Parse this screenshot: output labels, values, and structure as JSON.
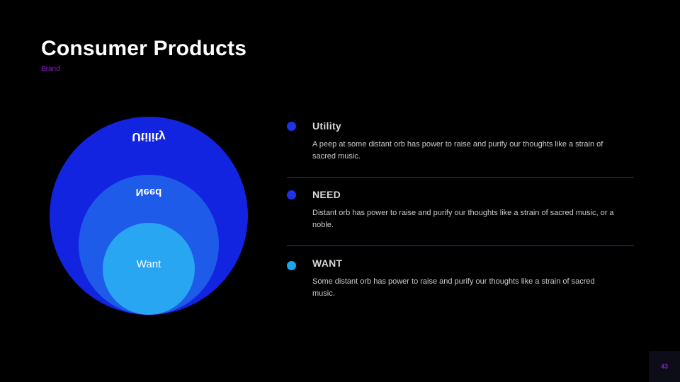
{
  "header": {
    "title": "Consumer Products",
    "subtitle": "Brand",
    "subtitle_color": "#8b1fcf"
  },
  "diagram": {
    "type": "nested-circles",
    "circles": [
      {
        "label": "Utility",
        "color": "#1224e0",
        "diameter": 280,
        "label_flipped": true
      },
      {
        "label": "Need",
        "color": "#1e5be8",
        "diameter": 198,
        "label_flipped": true
      },
      {
        "label": "Want",
        "color": "#29a6f2",
        "diameter": 130,
        "label_flipped": false
      }
    ],
    "label_color": "#ffffff"
  },
  "items": [
    {
      "bullet_color": "#1d33e8",
      "title": "Utility",
      "body": "A peep at some distant orb has power to raise and purify our thoughts like a strain of sacred music."
    },
    {
      "bullet_color": "#1d33e8",
      "title": "NEED",
      "body": "Distant orb has power to raise and purify our thoughts like a strain of sacred music, or a noble."
    },
    {
      "bullet_color": "#1aa7ee",
      "title": "WANT",
      "body": "Some distant orb has power to raise and purify our thoughts like a strain of sacred music."
    }
  ],
  "divider_color": "#1d2bd8",
  "page_number": "43",
  "page_number_color": "#8b1fcf",
  "background_color": "#000000"
}
